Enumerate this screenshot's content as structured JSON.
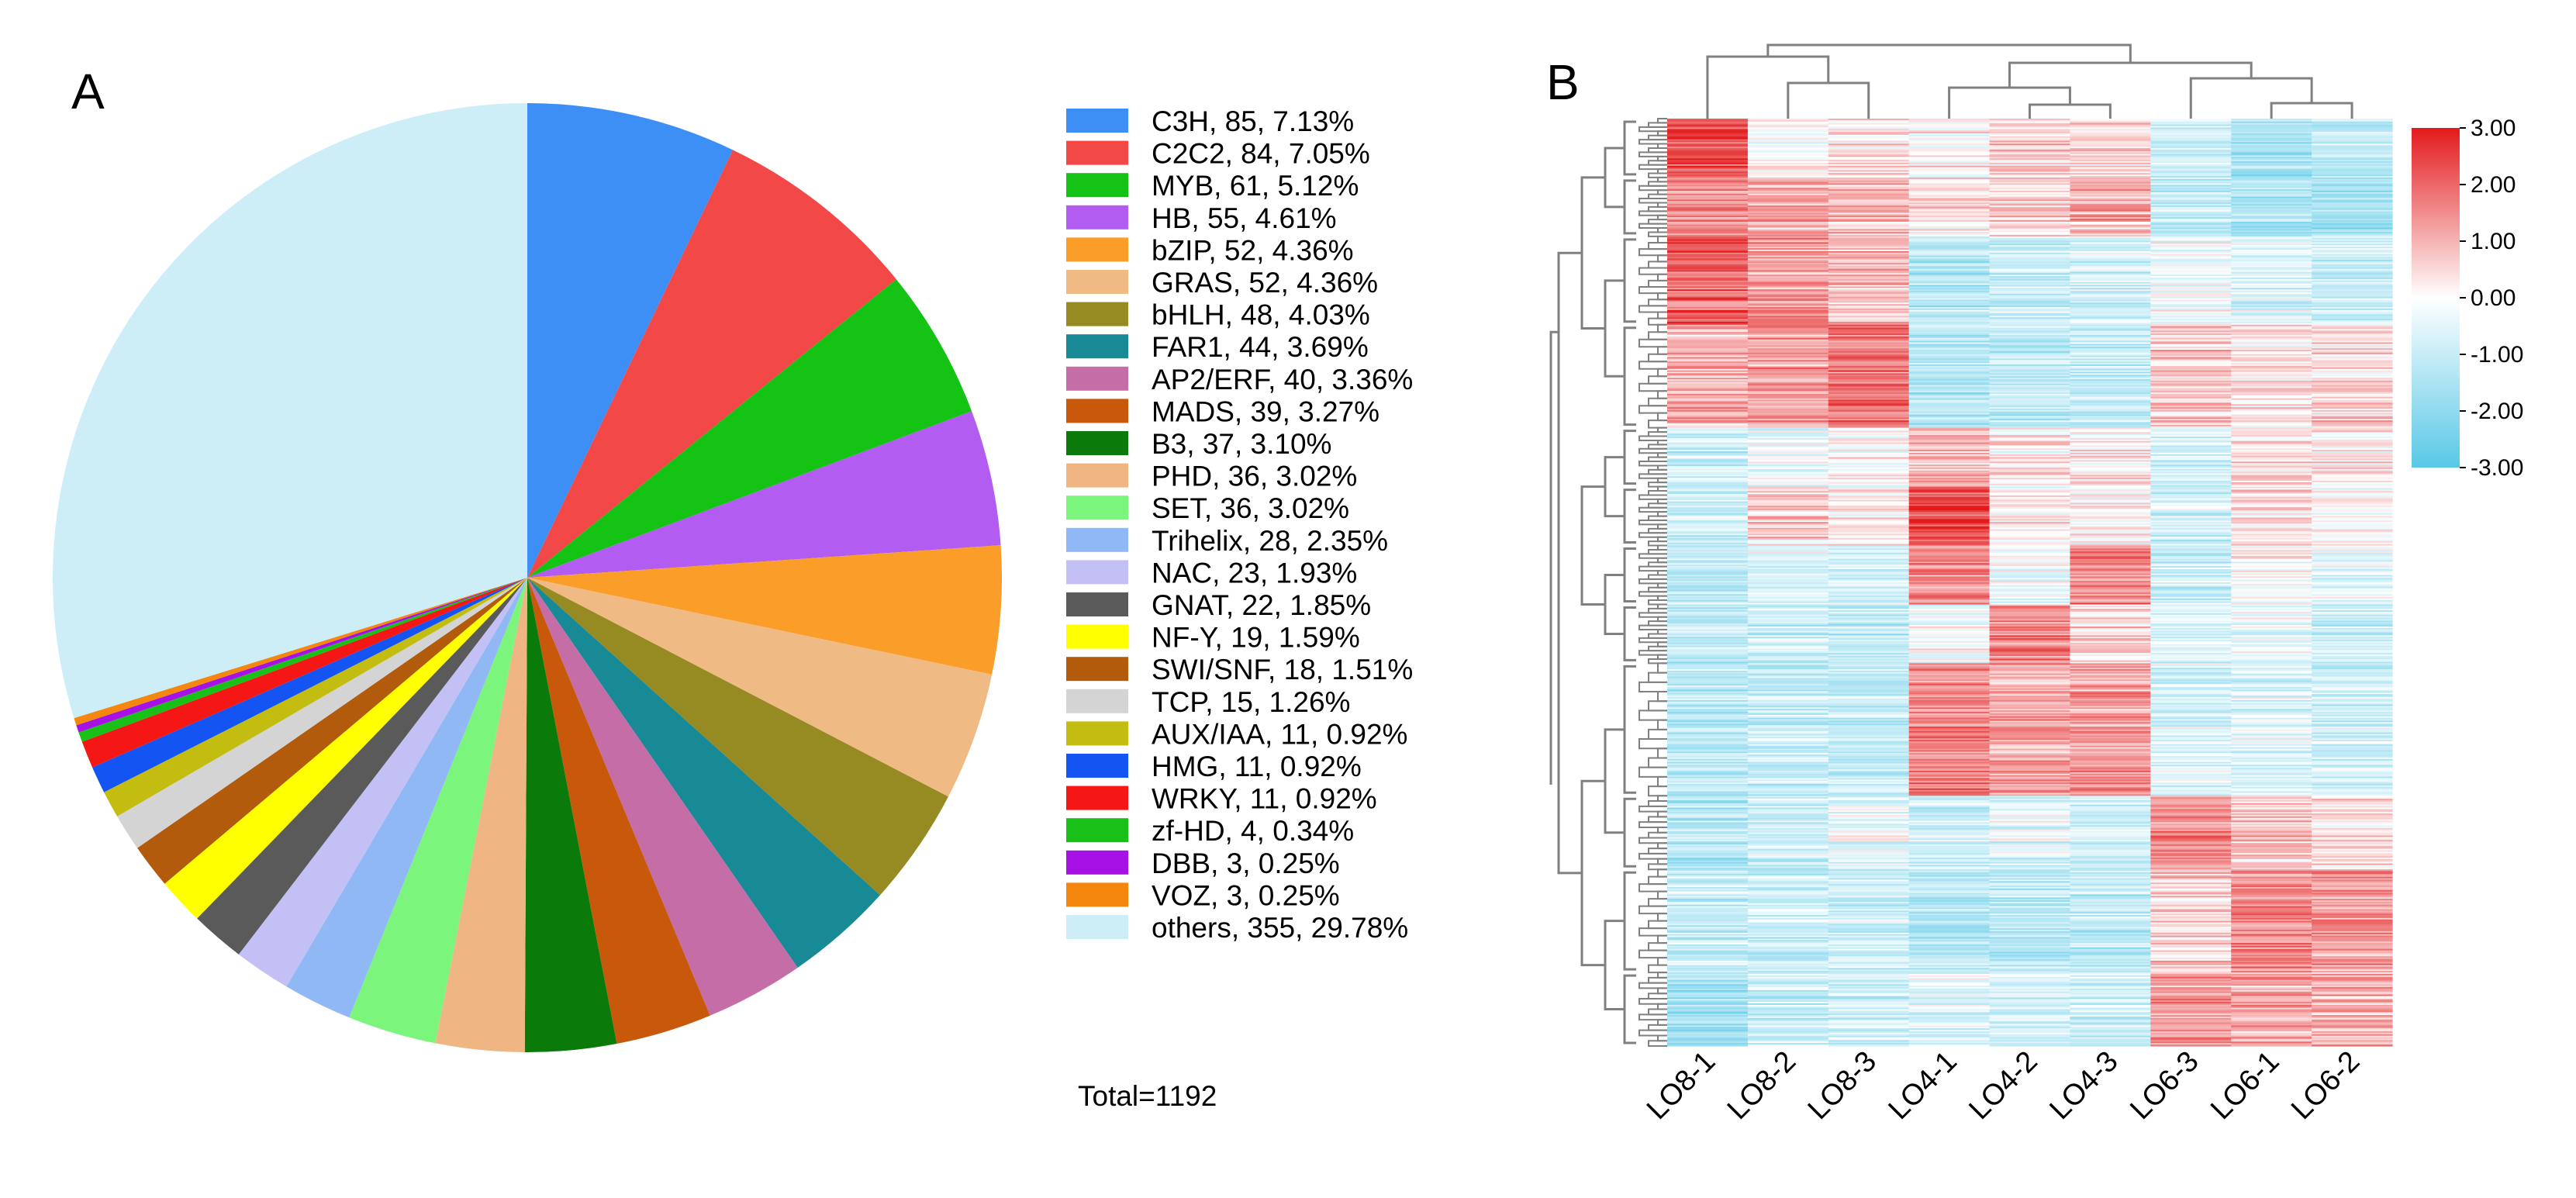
{
  "panels": {
    "a": "A",
    "b": "B"
  },
  "chart_data": [
    {
      "type": "pie",
      "panel": "A",
      "start": "12 o'clock, clockwise",
      "categories": [
        "C3H",
        "C2C2",
        "MYB",
        "HB",
        "bZIP",
        "GRAS",
        "bHLH",
        "FAR1",
        "AP2/ERF",
        "MADS",
        "B3",
        "PHD",
        "SET",
        "Trihelix",
        "NAC",
        "GNAT",
        "NF-Y",
        "SWI/SNF",
        "TCP",
        "AUX/IAA",
        "HMG",
        "WRKY",
        "zf-HD",
        "DBB",
        "VOZ",
        "others"
      ],
      "counts": [
        85,
        84,
        61,
        55,
        52,
        52,
        48,
        44,
        40,
        39,
        37,
        36,
        36,
        28,
        23,
        22,
        19,
        18,
        15,
        11,
        11,
        11,
        4,
        3,
        3,
        355
      ],
      "percents": [
        7.13,
        7.05,
        5.12,
        4.61,
        4.36,
        4.36,
        4.03,
        3.69,
        3.36,
        3.27,
        3.1,
        3.02,
        3.02,
        2.35,
        1.93,
        1.85,
        1.59,
        1.51,
        1.26,
        0.92,
        0.92,
        0.92,
        0.34,
        0.25,
        0.25,
        29.78
      ],
      "legend_labels": [
        "C3H, 85, 7.13%",
        "C2C2, 84, 7.05%",
        "MYB, 61, 5.12%",
        "HB, 55, 4.61%",
        "bZIP, 52, 4.36%",
        "GRAS, 52, 4.36%",
        "bHLH, 48, 4.03%",
        "FAR1, 44, 3.69%",
        "AP2/ERF, 40, 3.36%",
        "MADS, 39, 3.27%",
        "B3, 37, 3.10%",
        "PHD, 36, 3.02%",
        "SET, 36, 3.02%",
        "Trihelix, 28, 2.35%",
        "NAC, 23, 1.93%",
        "GNAT, 22, 1.85%",
        "NF-Y, 19, 1.59%",
        "SWI/SNF, 18, 1.51%",
        "TCP, 15, 1.26%",
        "AUX/IAA, 11, 0.92%",
        "HMG, 11, 0.92%",
        "WRKY, 11, 0.92%",
        "zf-HD, 4, 0.34%",
        "DBB, 3, 0.25%",
        "VOZ, 3, 0.25%",
        "others, 355, 29.78%"
      ],
      "colors": [
        "#3d8ff5",
        "#f24848",
        "#14c314",
        "#b35cf2",
        "#fa9d29",
        "#efba84",
        "#968a23",
        "#178a96",
        "#c56da6",
        "#c8590b",
        "#0a7a0a",
        "#efb583",
        "#7cf57c",
        "#90b8f4",
        "#c3c0f5",
        "#5a5a5a",
        "#ffff00",
        "#b35b0c",
        "#d4d4d4",
        "#c3bd12",
        "#1454f2",
        "#f51616",
        "#18c018",
        "#a612e6",
        "#f5870f",
        "#cdeef7"
      ],
      "total": 1192,
      "total_label": "Total=1192"
    },
    {
      "type": "heatmap",
      "panel": "B",
      "columns": [
        "LO8-1",
        "LO8-2",
        "LO8-3",
        "LO4-1",
        "LO4-2",
        "LO4-3",
        "LO6-3",
        "LO6-1",
        "LO6-2"
      ],
      "column_groups": [
        [
          "LO8-1"
        ],
        [
          "LO8-2",
          "LO8-3"
        ],
        [
          "LO4-1",
          "LO4-2",
          "LO4-3"
        ],
        [
          "LO6-3",
          "LO6-1",
          "LO6-2"
        ]
      ],
      "colorbar": {
        "min": -3.0,
        "max": 3.0,
        "ticks": [
          "3.00",
          "2.00",
          "1.00",
          "0.00",
          "-1.00",
          "-2.00",
          "-3.00"
        ],
        "colors": [
          "#e31a1c",
          "#ffffff",
          "#58c8e6"
        ]
      },
      "row_clusters": [
        {
          "rows": 40,
          "means": [
            2.3,
            0.0,
            0.3,
            0.1,
            0.5,
            0.4,
            -0.9,
            -1.6,
            -1.2
          ]
        },
        {
          "rows": 40,
          "means": [
            1.4,
            1.1,
            1.0,
            0.3,
            0.5,
            1.0,
            -1.1,
            -1.5,
            -1.6
          ]
        },
        {
          "rows": 60,
          "means": [
            2.1,
            1.3,
            0.9,
            -1.3,
            -1.0,
            -0.8,
            -0.4,
            -0.6,
            -0.9
          ]
        },
        {
          "rows": 70,
          "means": [
            1.0,
            1.3,
            1.8,
            -1.3,
            -1.1,
            -1.0,
            0.6,
            0.3,
            0.5
          ]
        },
        {
          "rows": 40,
          "means": [
            -0.9,
            -0.5,
            0.0,
            0.9,
            0.1,
            0.2,
            -0.8,
            0.3,
            0.2
          ]
        },
        {
          "rows": 40,
          "means": [
            -1.0,
            0.5,
            0.1,
            2.4,
            0.2,
            0.0,
            -0.8,
            0.4,
            -0.1
          ]
        },
        {
          "rows": 40,
          "means": [
            -1.2,
            -0.6,
            -0.9,
            1.5,
            -0.4,
            1.6,
            -0.9,
            0.1,
            -0.5
          ]
        },
        {
          "rows": 40,
          "means": [
            -1.1,
            -1.0,
            -1.2,
            -0.2,
            1.5,
            0.4,
            -0.6,
            -0.4,
            -1.0
          ]
        },
        {
          "rows": 90,
          "means": [
            -1.2,
            -0.9,
            -1.0,
            1.6,
            1.2,
            1.3,
            -0.7,
            -0.6,
            -0.8
          ]
        },
        {
          "rows": 50,
          "means": [
            -1.3,
            -0.8,
            -0.4,
            -0.9,
            -0.6,
            -0.9,
            1.4,
            0.7,
            0.4
          ]
        },
        {
          "rows": 70,
          "means": [
            -1.0,
            -0.9,
            -0.9,
            -1.2,
            -1.1,
            -1.1,
            0.6,
            1.6,
            1.3
          ]
        },
        {
          "rows": 50,
          "means": [
            -1.6,
            -0.9,
            -0.8,
            -0.5,
            -0.7,
            -0.9,
            1.3,
            1.1,
            1.0
          ]
        }
      ]
    }
  ]
}
